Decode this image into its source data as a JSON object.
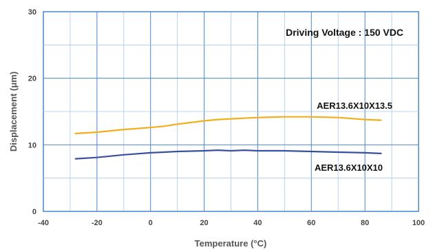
{
  "chart_data": {
    "type": "line",
    "annotation": "Driving Voltage : 150 VDC",
    "xlabel": "Temperature (°C)",
    "ylabel": "Displacement (μm)",
    "xlim": [
      -40,
      100
    ],
    "ylim": [
      0,
      30
    ],
    "x_ticks": [
      "-40",
      "-20",
      "0",
      "20",
      "40",
      "60",
      "80",
      "100"
    ],
    "y_ticks": [
      "0",
      "10",
      "20",
      "30"
    ],
    "grid": true,
    "series": [
      {
        "name": "AER13.6X10X13.5",
        "color": "#f2ae1c",
        "x": [
          -28,
          -20,
          -10,
          0,
          5,
          10,
          20,
          25,
          30,
          40,
          50,
          60,
          70,
          80,
          86
        ],
        "y": [
          11.7,
          11.9,
          12.3,
          12.6,
          12.8,
          13.1,
          13.6,
          13.8,
          13.9,
          14.1,
          14.2,
          14.2,
          14.1,
          13.8,
          13.7
        ]
      },
      {
        "name": "AER13.6X10X10",
        "color": "#3a4fa0",
        "x": [
          -28,
          -20,
          -10,
          0,
          5,
          10,
          20,
          25,
          30,
          35,
          40,
          50,
          60,
          70,
          80,
          86
        ],
        "y": [
          7.9,
          8.1,
          8.5,
          8.8,
          8.9,
          9.0,
          9.1,
          9.2,
          9.1,
          9.2,
          9.1,
          9.1,
          9.0,
          8.9,
          8.8,
          8.7
        ]
      }
    ]
  }
}
